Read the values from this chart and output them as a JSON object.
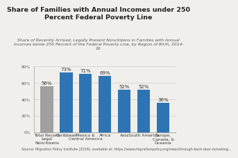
{
  "title": "Share of Families with Annual Incomes under 250\nPercent Federal Poverty Line",
  "subtitle": "Share of Recently Arrived, Legally Present Noncitizens in Families with Annual\nIncomes below 250 Percent of the Federal Poverty Line, by Region of Birth, 2014-\n16",
  "source": "Source: Migration Policy Institute (2018), available at: https://www.migrationpolicy.org/news/through-back-door-remaking...",
  "categories": [
    "Total Recent\nLegal\nNoncitizens",
    "Caribbean",
    "Mexico &\nCentral America",
    "Africa",
    "Asia",
    "South America",
    "Europe,\nCanada, &\nOceania"
  ],
  "values": [
    56,
    73,
    71,
    69,
    52,
    52,
    36
  ],
  "bar_colors": [
    "#a0a0a0",
    "#2e74b5",
    "#2e74b5",
    "#2e74b5",
    "#2e74b5",
    "#2e74b5",
    "#2e74b5"
  ],
  "ylim": [
    0,
    80
  ],
  "yticks": [
    0,
    20,
    40,
    60,
    80
  ],
  "ytick_labels": [
    "0%",
    "20%",
    "40%",
    "60%",
    "80%"
  ],
  "title_fontsize": 6.8,
  "subtitle_fontsize": 4.3,
  "bar_label_fontsize": 5.0,
  "axis_fontsize": 4.3,
  "source_fontsize": 3.5,
  "background_color": "#f0efeb"
}
